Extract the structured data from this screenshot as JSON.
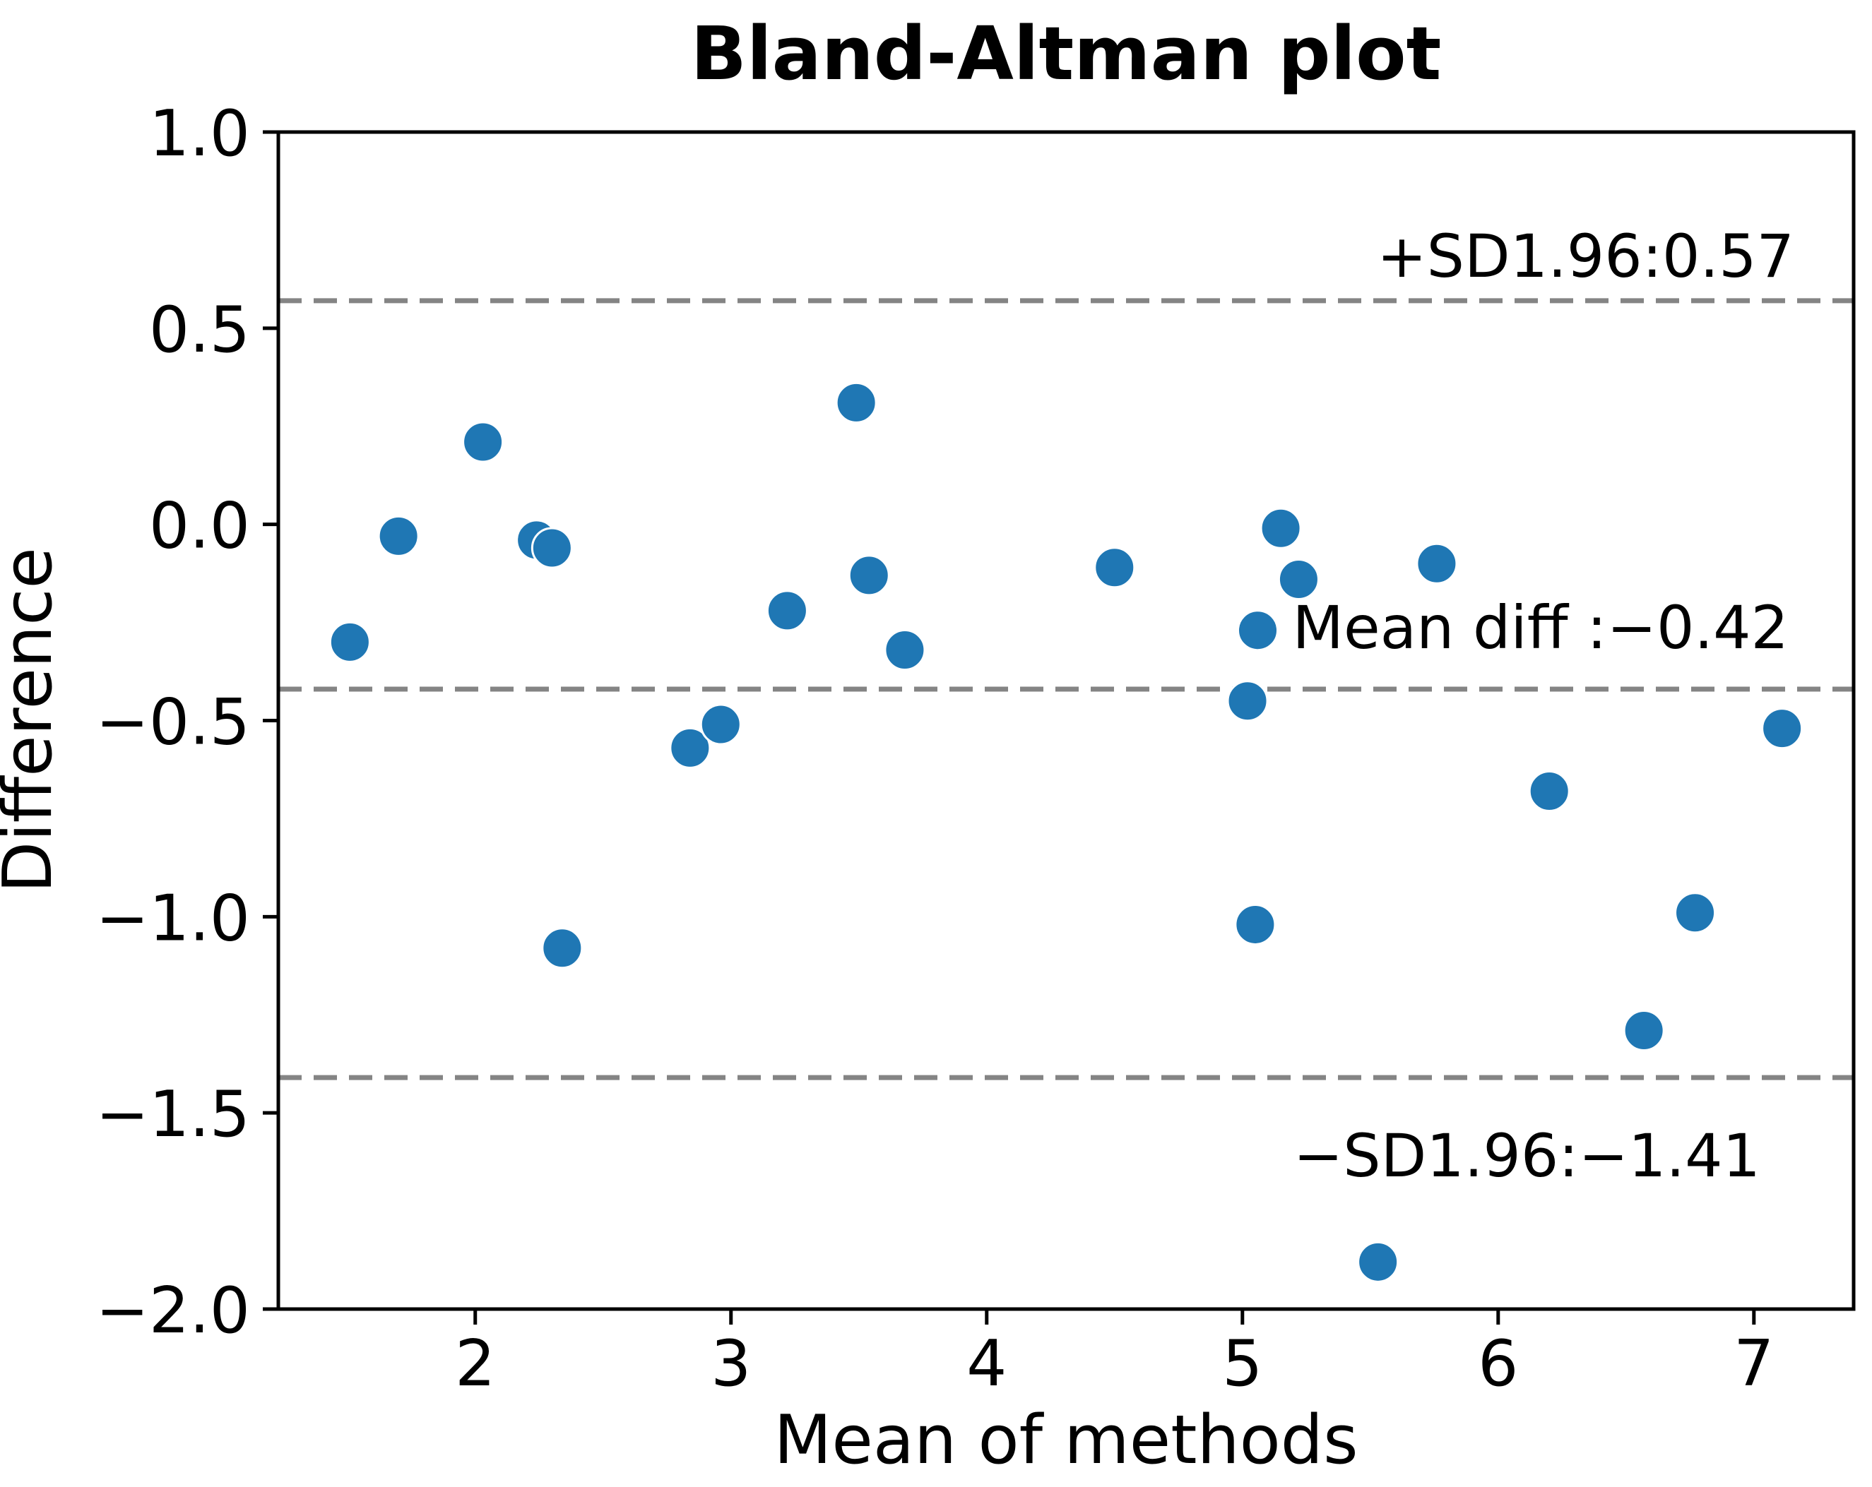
{
  "chart_data": {
    "type": "scatter",
    "title": "Bland-Altman plot",
    "xlabel": "Mean of methods",
    "ylabel": "Difference",
    "xlim": [
      1.23,
      7.39
    ],
    "ylim": [
      -2.0,
      1.0
    ],
    "grid": false,
    "legend": "none",
    "x_ticks": {
      "values": [
        2,
        3,
        4,
        5,
        6,
        7
      ],
      "labels": [
        "2",
        "3",
        "4",
        "5",
        "6",
        "7"
      ]
    },
    "y_ticks": {
      "values": [
        1.0,
        0.5,
        0.0,
        -0.5,
        -1.0,
        -1.5,
        -2.0
      ],
      "labels": [
        "1.0",
        "0.5",
        "0.0",
        "−0.5",
        "−1.0",
        "−1.5",
        "−2.0"
      ]
    },
    "colors": {
      "point": "#1f77b4",
      "limit_line": "#848484",
      "frame": "#000000"
    },
    "marker": {
      "shape": "circle",
      "radius_px": 28,
      "edge_color": "#ffffff"
    },
    "points": [
      [
        1.51,
        -0.3
      ],
      [
        1.7,
        -0.03
      ],
      [
        2.03,
        0.21
      ],
      [
        2.24,
        -0.04
      ],
      [
        2.3,
        -0.06
      ],
      [
        2.34,
        -1.08
      ],
      [
        2.84,
        -0.57
      ],
      [
        2.96,
        -0.51
      ],
      [
        3.22,
        -0.22
      ],
      [
        3.49,
        0.31
      ],
      [
        3.54,
        -0.13
      ],
      [
        3.68,
        -0.32
      ],
      [
        4.5,
        -0.11
      ],
      [
        5.02,
        -0.45
      ],
      [
        5.05,
        -1.02
      ],
      [
        5.06,
        -0.27
      ],
      [
        5.15,
        -0.01
      ],
      [
        5.22,
        -0.14
      ],
      [
        5.53,
        -1.88
      ],
      [
        5.76,
        -0.1
      ],
      [
        6.2,
        -0.68
      ],
      [
        6.57,
        -1.29
      ],
      [
        6.77,
        -0.99
      ],
      [
        7.11,
        -0.52
      ]
    ],
    "lines": [
      {
        "name": "upper-loa",
        "value": 0.57,
        "label": "+SD1.96:0.57"
      },
      {
        "name": "mean-diff",
        "value": -0.42,
        "label": "Mean diff :−0.42"
      },
      {
        "name": "lower-loa",
        "value": -1.41,
        "label": "−SD1.96:−1.41"
      }
    ]
  }
}
